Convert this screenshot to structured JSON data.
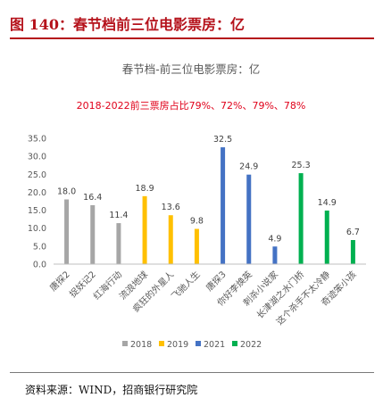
{
  "figure": {
    "label": "图 140：春节档前三位电影票房：亿",
    "source": "资料来源：WIND，招商银行研究院",
    "accent_color": "#b5121b"
  },
  "chart_data": {
    "type": "bar",
    "title": "春节档-前三位电影票房：亿",
    "subtitle": "2018-2022前三票房占比79%、72%、79%、78%",
    "categories": [
      "唐探2",
      "捉妖记2",
      "红海行动",
      "流浪地球",
      "疯狂的外星人",
      "飞驰人生",
      "唐探3",
      "你好李焕英",
      "刺杀小说家",
      "长津湖之水门桥",
      "这个杀手不太冷静",
      "奇迹笨小孩"
    ],
    "values": [
      18.0,
      16.4,
      11.4,
      18.9,
      13.6,
      9.8,
      32.5,
      24.9,
      4.9,
      25.3,
      14.9,
      6.7
    ],
    "value_labels": [
      "18.0",
      "16.4",
      "11.4",
      "18.9",
      "13.6",
      "9.8",
      "32.5",
      "24.9",
      "4.9",
      "25.3",
      "14.9",
      "6.7"
    ],
    "groups": [
      "2018",
      "2018",
      "2018",
      "2019",
      "2019",
      "2019",
      "2021",
      "2021",
      "2021",
      "2022",
      "2022",
      "2022"
    ],
    "series": [
      {
        "name": "2018",
        "color": "#a6a6a6"
      },
      {
        "name": "2019",
        "color": "#ffc000"
      },
      {
        "name": "2021",
        "color": "#4472c4"
      },
      {
        "name": "2022",
        "color": "#00b050"
      }
    ],
    "yticks": [
      "0.0",
      "5.0",
      "10.0",
      "15.0",
      "20.0",
      "25.0",
      "30.0",
      "35.0"
    ],
    "ylim": [
      0,
      35
    ],
    "legend_position": "bottom",
    "grid": false,
    "title_color": "#595959",
    "subtitle_color": "#e0001a"
  }
}
